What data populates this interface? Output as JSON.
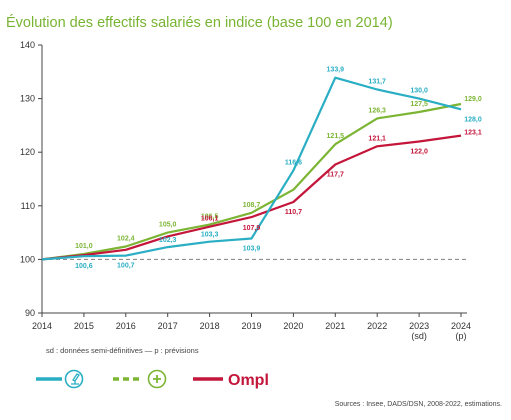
{
  "chart_data": {
    "type": "line",
    "title": "Évolution des effectifs salariés en indice (base 100 en 2014)",
    "x": [
      "2014",
      "2015",
      "2016",
      "2017",
      "2018",
      "2019",
      "2020",
      "2021",
      "2022",
      "2023",
      "2024"
    ],
    "x_sublabels": [
      "",
      "",
      "",
      "",
      "",
      "",
      "",
      "",
      "",
      "(sd)",
      "(p)"
    ],
    "ylim": [
      90,
      140
    ],
    "yticks": [
      90,
      100,
      110,
      120,
      130,
      140
    ],
    "reference_line": {
      "value": 100,
      "style": "dashed",
      "color": "#808080"
    },
    "grid": false,
    "series": [
      {
        "icon": "microscope-circle-icon",
        "color": "#2aaec4",
        "values": [
          100,
          100.6,
          100.7,
          102.3,
          103.3,
          103.9,
          116.6,
          133.9,
          131.7,
          130.0,
          128.0
        ],
        "labels": [
          "",
          "100,6",
          "100,7",
          "102,3",
          "103,3",
          "103,9",
          "116,6",
          "133,9",
          "131,7",
          "130,0",
          "128,0"
        ]
      },
      {
        "icon": "plus-circle-icon",
        "color": "#7cb534",
        "style": "dashed-in-legend",
        "values": [
          100,
          101.0,
          102.4,
          105.0,
          106.5,
          108.7,
          113.0,
          121.5,
          126.3,
          127.5,
          129.0
        ],
        "labels": [
          "",
          "101,0",
          "102,4",
          "105,0",
          "106,5",
          "108,7",
          "",
          "121,5",
          "126,3",
          "127,5",
          "129,0"
        ]
      },
      {
        "icon": "ompl-logo",
        "legend_text": "Ompl",
        "color": "#c4163b",
        "values": [
          100,
          100.8,
          101.8,
          104.3,
          106.1,
          107.9,
          110.7,
          117.7,
          121.1,
          122.0,
          123.1
        ],
        "labels": [
          "",
          "",
          "",
          "",
          "106,1",
          "107,9",
          "110,7",
          "117,7",
          "121,1",
          "122,0",
          "123,1"
        ]
      }
    ]
  },
  "footnote": "sd : données semi-définitives — p : prévisions",
  "source": "Sources : Insee, DADS/DSN, 2008-2022, estimations.",
  "colors": {
    "title": "#78b432",
    "axis": "#333333"
  }
}
